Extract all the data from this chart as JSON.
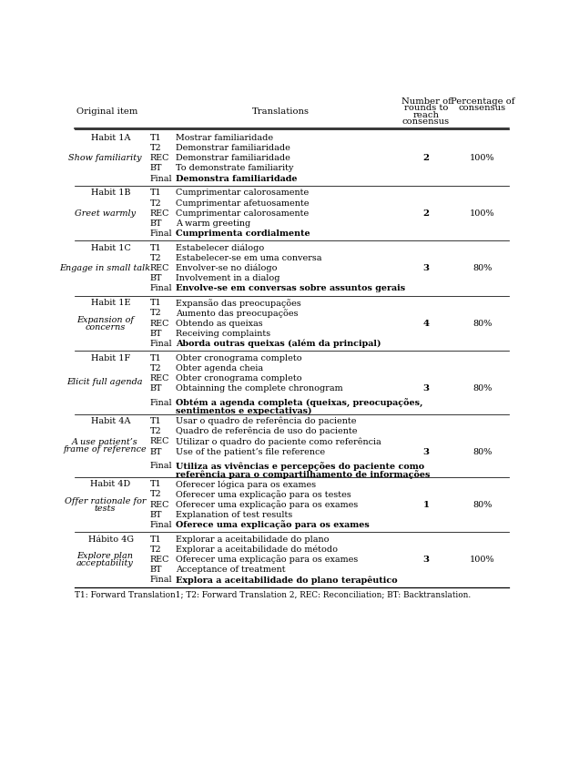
{
  "footer": "T1: Forward Translation1; T2: Forward Translation 2, REC: Reconciliation; BT: Backtranslation.",
  "col_headers": {
    "orig": "Original item",
    "trans": "Translations",
    "rounds": [
      "Number of",
      "rounds to",
      "reach",
      "consensus"
    ],
    "pct": [
      "Percentage of",
      "consensus"
    ]
  },
  "sections": [
    {
      "habit_id": "Habit 1A",
      "habit_italic": [
        "Show familiarity"
      ],
      "rows": [
        {
          "code": "T1",
          "text": "Mostrar familiaridade",
          "bold": false
        },
        {
          "code": "T2",
          "text": "Demonstrar familiaridade",
          "bold": false
        },
        {
          "code": "REC",
          "text": "Demonstrar familiaridade",
          "bold": false
        },
        {
          "code": "BT",
          "text": "To demonstrate familiarity",
          "bold": false
        },
        {
          "code": "Final",
          "text": "Demonstra familiaridade",
          "bold": true
        }
      ],
      "rounds": "2",
      "percentage": "100%",
      "rounds_row": 2
    },
    {
      "habit_id": "Habit 1B",
      "habit_italic": [
        "Greet warmly"
      ],
      "rows": [
        {
          "code": "T1",
          "text": "Cumprimentar calorosamente",
          "bold": false
        },
        {
          "code": "T2",
          "text": "Cumprimentar afetuosamente",
          "bold": false
        },
        {
          "code": "REC",
          "text": "Cumprimentar calorosamente",
          "bold": false
        },
        {
          "code": "BT",
          "text": "A warm greeting",
          "bold": false
        },
        {
          "code": "Final",
          "text": "Cumprimenta cordialmente",
          "bold": true
        }
      ],
      "rounds": "2",
      "percentage": "100%",
      "rounds_row": 2
    },
    {
      "habit_id": "Habit 1C",
      "habit_italic": [
        "Engage in small talk"
      ],
      "rows": [
        {
          "code": "T1",
          "text": "Estabelecer diálogo",
          "bold": false
        },
        {
          "code": "T2",
          "text": "Estabelecer-se em uma conversa",
          "bold": false
        },
        {
          "code": "REC",
          "text": "Envolver-se no diálogo",
          "bold": false
        },
        {
          "code": "BT",
          "text": "Involvement in a dialog",
          "bold": false
        },
        {
          "code": "Final",
          "text": "Envolve-se em conversas sobre assuntos gerais",
          "bold": true
        }
      ],
      "rounds": "3",
      "percentage": "80%",
      "rounds_row": 2
    },
    {
      "habit_id": "Habit 1E",
      "habit_italic": [
        "Expansion of",
        "concerns"
      ],
      "rows": [
        {
          "code": "T1",
          "text": "Expansão das preocupações",
          "bold": false
        },
        {
          "code": "T2",
          "text": "Aumento das preocupações",
          "bold": false
        },
        {
          "code": "REC",
          "text": "Obtendo as queixas",
          "bold": false
        },
        {
          "code": "BT",
          "text": "Receiving complaints",
          "bold": false
        },
        {
          "code": "Final",
          "text": "Aborda outras queixas (além da principal)",
          "bold": true
        }
      ],
      "rounds": "4",
      "percentage": "80%",
      "rounds_row": 2
    },
    {
      "habit_id": "Habit 1F",
      "habit_italic": [
        "Elicit full agenda"
      ],
      "rows": [
        {
          "code": "T1",
          "text": "Obter cronograma completo",
          "bold": false
        },
        {
          "code": "T2",
          "text": "Obter agenda cheia",
          "bold": false
        },
        {
          "code": "REC",
          "text": "Obter cronograma completo",
          "bold": false
        },
        {
          "code": "BT",
          "text": "Obtainning the complete chronogram",
          "bold": false
        },
        {
          "code": "Final",
          "text": "Obtém a agenda completa (queixas, preocupações,\nsentimentos e expectativas)",
          "bold": true
        }
      ],
      "rounds": "3",
      "percentage": "80%",
      "rounds_row": 3
    },
    {
      "habit_id": "Habit 4A",
      "habit_italic": [
        "A use patient’s",
        "frame of reference"
      ],
      "rows": [
        {
          "code": "T1",
          "text": "Usar o quadro de referência do paciente",
          "bold": false
        },
        {
          "code": "T2",
          "text": "Quadro de referência de uso do paciente",
          "bold": false
        },
        {
          "code": "REC",
          "text": "Utilizar o quadro do paciente como referência",
          "bold": false
        },
        {
          "code": "BT",
          "text": "Use of the patient’s file reference",
          "bold": false
        },
        {
          "code": "Final",
          "text": "Utiliza as vivências e percepções do paciente como\nreferência para o compartilhamento de informações",
          "bold": true
        }
      ],
      "rounds": "3",
      "percentage": "80%",
      "rounds_row": 3
    },
    {
      "habit_id": "Habit 4D",
      "habit_italic": [
        "Offer rationale for",
        "tests"
      ],
      "rows": [
        {
          "code": "T1",
          "text": "Oferecer lógica para os exames",
          "bold": false
        },
        {
          "code": "T2",
          "text": "Oferecer uma explicação para os testes",
          "bold": false
        },
        {
          "code": "REC",
          "text": "Oferecer uma explicação para os exames",
          "bold": false
        },
        {
          "code": "BT",
          "text": "Explanation of test results",
          "bold": false
        },
        {
          "code": "Final",
          "text": "Oferece uma explicação para os exames",
          "bold": true
        }
      ],
      "rounds": "1",
      "percentage": "80%",
      "rounds_row": 2
    },
    {
      "habit_id": "Hábito 4G",
      "habit_italic": [
        "Explore plan",
        "acceptability"
      ],
      "rows": [
        {
          "code": "T1",
          "text": "Explorar a aceitabilidade do plano",
          "bold": false
        },
        {
          "code": "T2",
          "text": "Explorar a aceitabilidade do método",
          "bold": false
        },
        {
          "code": "REC",
          "text": "Oferecer uma explicação para os exames",
          "bold": false
        },
        {
          "code": "BT",
          "text": "Acceptance of treatment",
          "bold": false
        },
        {
          "code": "Final",
          "text": "Explora a aceitabilidade do plano terapêutico",
          "bold": true
        }
      ],
      "rounds": "3",
      "percentage": "100%",
      "rounds_row": 2
    }
  ]
}
